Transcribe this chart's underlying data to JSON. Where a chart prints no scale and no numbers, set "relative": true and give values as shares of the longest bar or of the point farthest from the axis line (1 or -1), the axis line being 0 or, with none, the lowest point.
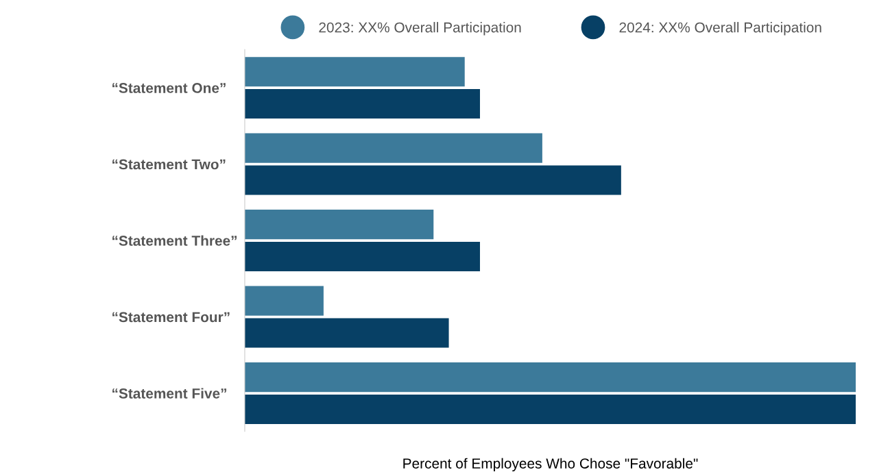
{
  "chart_data": {
    "type": "bar",
    "orientation": "horizontal",
    "relative": true,
    "categories": [
      "“Statement One”",
      "“Statement Two”",
      "“Statement Three”",
      "“Statement Four”",
      "“Statement Five”"
    ],
    "series": [
      {
        "name": "2023: XX% Overall Participation",
        "color": "#3c7a9a",
        "values": [
          0.36,
          0.487,
          0.309,
          0.129,
          1.0
        ]
      },
      {
        "name": "2024: XX% Overall Participation",
        "color": "#074065",
        "values": [
          0.385,
          0.616,
          0.385,
          0.334,
          1.0
        ]
      }
    ],
    "xlabel": "Percent of Employees Who Chose \"Favorable\"",
    "legend": "top",
    "marker": "circle"
  }
}
